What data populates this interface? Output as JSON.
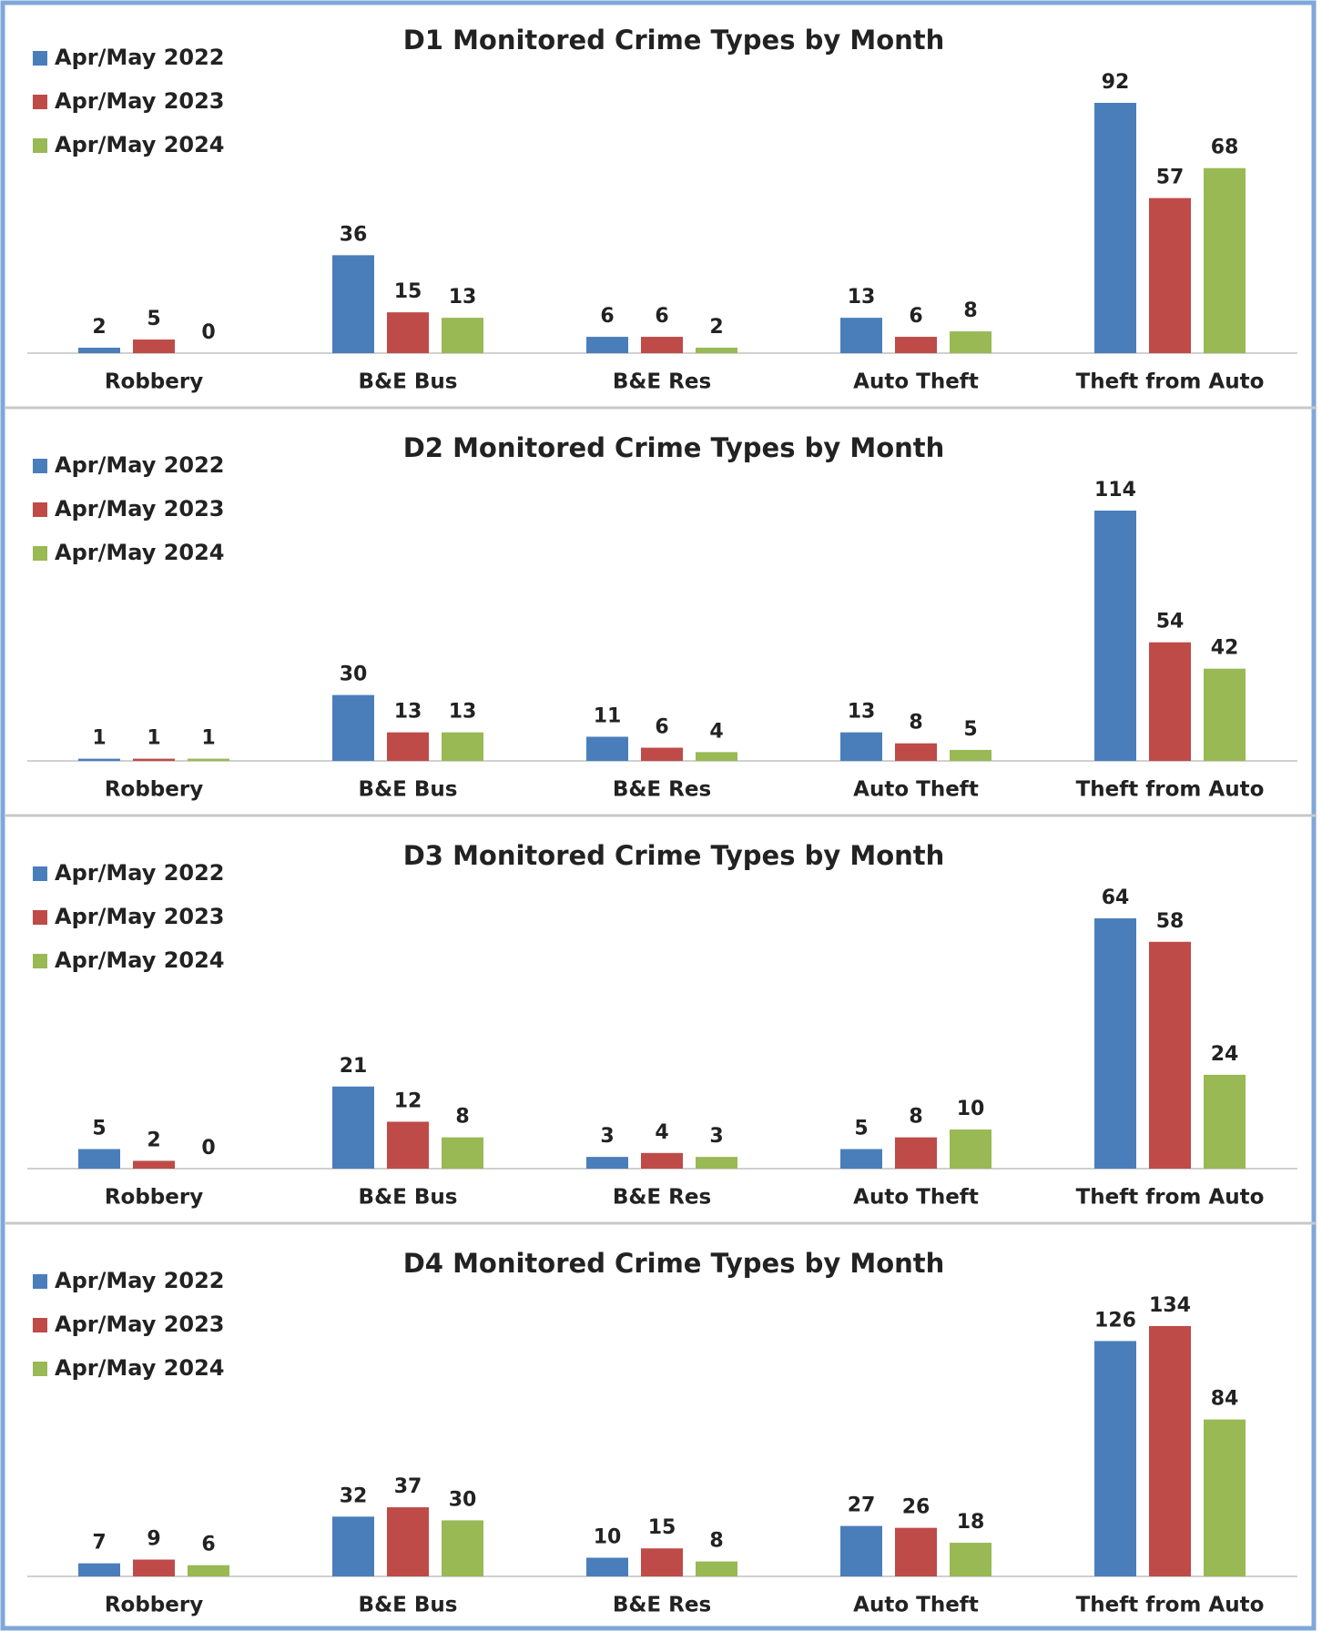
{
  "chart_data": [
    {
      "type": "bar",
      "title": "D1 Monitored Crime Types by Month",
      "categories": [
        "Robbery",
        "B&E Bus",
        "B&E Res",
        "Auto Theft",
        "Theft from Auto"
      ],
      "series": [
        {
          "name": "Apr/May 2022",
          "color": "#4a7ebb",
          "values": [
            2,
            36,
            6,
            13,
            92
          ]
        },
        {
          "name": "Apr/May 2023",
          "color": "#be4b48",
          "values": [
            5,
            15,
            6,
            6,
            57
          ]
        },
        {
          "name": "Apr/May 2024",
          "color": "#98b954",
          "values": [
            0,
            13,
            2,
            8,
            68
          ]
        }
      ]
    },
    {
      "type": "bar",
      "title": "D2 Monitored Crime Types by Month",
      "categories": [
        "Robbery",
        "B&E Bus",
        "B&E Res",
        "Auto Theft",
        "Theft from Auto"
      ],
      "series": [
        {
          "name": "Apr/May 2022",
          "color": "#4a7ebb",
          "values": [
            1,
            30,
            11,
            13,
            114
          ]
        },
        {
          "name": "Apr/May 2023",
          "color": "#be4b48",
          "values": [
            1,
            13,
            6,
            8,
            54
          ]
        },
        {
          "name": "Apr/May 2024",
          "color": "#98b954",
          "values": [
            1,
            13,
            4,
            5,
            42
          ]
        }
      ]
    },
    {
      "type": "bar",
      "title": "D3 Monitored Crime Types by Month",
      "categories": [
        "Robbery",
        "B&E Bus",
        "B&E Res",
        "Auto Theft",
        "Theft from Auto"
      ],
      "series": [
        {
          "name": "Apr/May 2022",
          "color": "#4a7ebb",
          "values": [
            5,
            21,
            3,
            5,
            64
          ]
        },
        {
          "name": "Apr/May 2023",
          "color": "#be4b48",
          "values": [
            2,
            12,
            4,
            8,
            58
          ]
        },
        {
          "name": "Apr/May 2024",
          "color": "#98b954",
          "values": [
            0,
            8,
            3,
            10,
            24
          ]
        }
      ]
    },
    {
      "type": "bar",
      "title": "D4 Monitored Crime Types by Month",
      "categories": [
        "Robbery",
        "B&E Bus",
        "B&E Res",
        "Auto Theft",
        "Theft from Auto"
      ],
      "series": [
        {
          "name": "Apr/May 2022",
          "color": "#4a7ebb",
          "values": [
            7,
            32,
            10,
            27,
            126
          ]
        },
        {
          "name": "Apr/May 2023",
          "color": "#be4b48",
          "values": [
            9,
            37,
            15,
            26,
            134
          ]
        },
        {
          "name": "Apr/May 2024",
          "color": "#98b954",
          "values": [
            6,
            30,
            8,
            18,
            84
          ]
        }
      ]
    }
  ]
}
